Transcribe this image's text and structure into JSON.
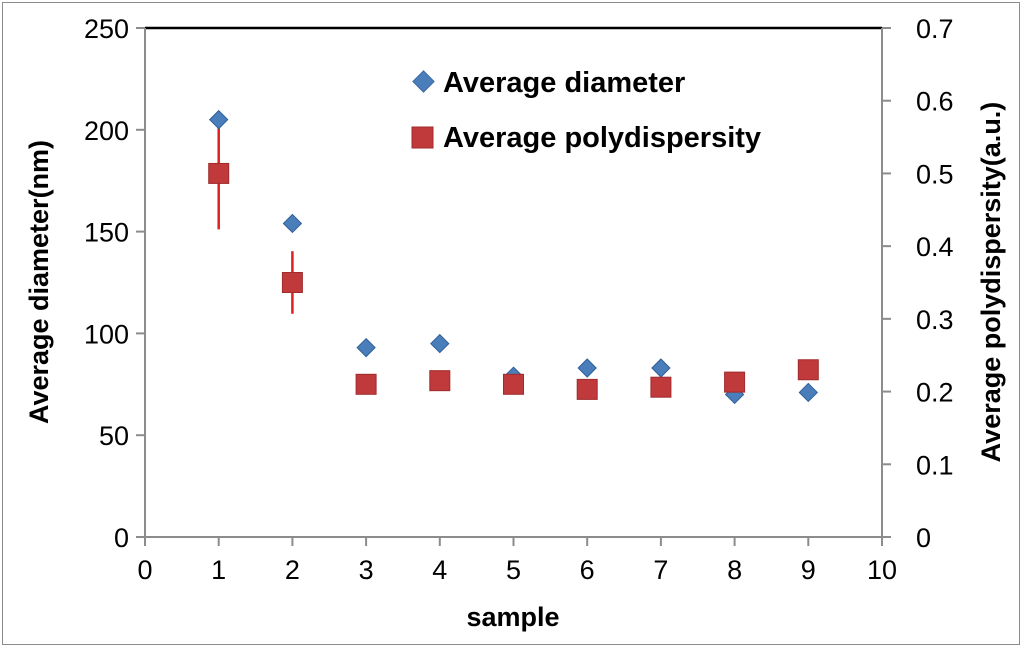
{
  "chart_data": {
    "type": "scatter",
    "title": "",
    "xlabel": "sample",
    "ylabel": "Average diameter(nm)",
    "y2label": "Average polydispersity(a.u.)",
    "xlim": [
      0,
      10
    ],
    "ylim": [
      0,
      250
    ],
    "y2lim": [
      0,
      0.7
    ],
    "xticks": [
      "0",
      "1",
      "2",
      "3",
      "4",
      "5",
      "6",
      "7",
      "8",
      "9",
      "10"
    ],
    "yticks": [
      "0",
      "50",
      "100",
      "150",
      "200",
      "250"
    ],
    "y2ticks": [
      "0",
      "0.1",
      "0.2",
      "0.3",
      "0.4",
      "0.5",
      "0.6",
      "0.7"
    ],
    "grid": false,
    "legend_position": "top-center",
    "series": [
      {
        "name": "Average diameter",
        "axis": "left",
        "marker": "diamond",
        "color": "#4a7ebb",
        "x": [
          1,
          2,
          3,
          4,
          5,
          6,
          7,
          8,
          9
        ],
        "values": [
          205,
          154,
          93,
          95,
          79,
          83,
          83,
          70,
          71
        ],
        "error": [
          1,
          1,
          0,
          0,
          0,
          0,
          0,
          0,
          0
        ]
      },
      {
        "name": "Average polydispersity",
        "axis": "right",
        "marker": "square",
        "color": "#c0393b",
        "x": [
          1,
          2,
          3,
          4,
          5,
          6,
          7,
          8,
          9
        ],
        "values": [
          0.5,
          0.35,
          0.21,
          0.215,
          0.21,
          0.203,
          0.206,
          0.213,
          0.23
        ],
        "error": [
          0.077,
          0.043,
          0,
          0,
          0,
          0,
          0,
          0,
          0
        ]
      }
    ]
  }
}
